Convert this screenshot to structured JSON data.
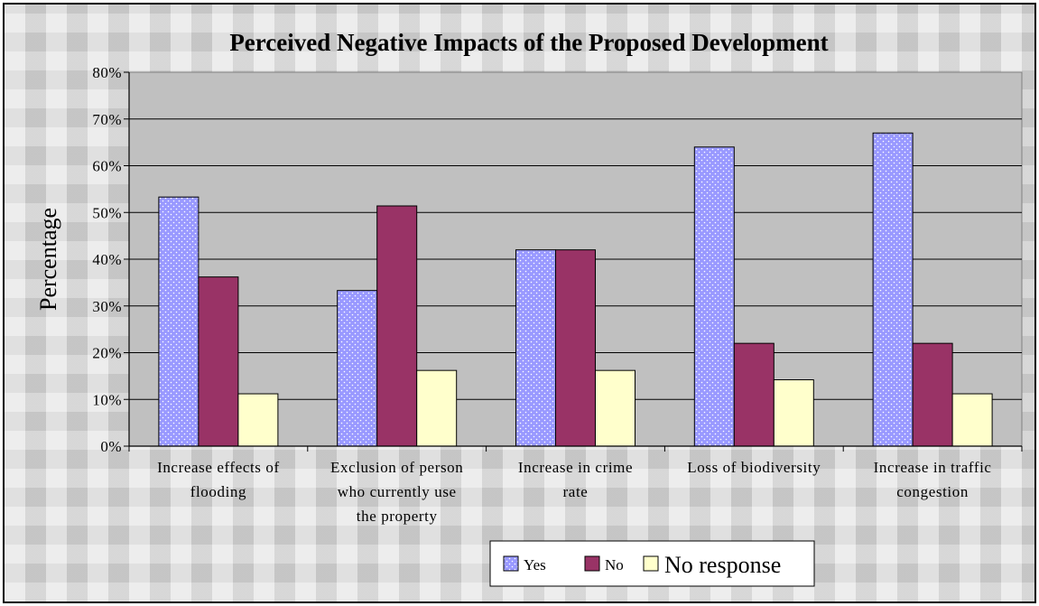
{
  "chart_data": {
    "type": "bar",
    "title": "Perceived Negative Impacts of the Proposed Development",
    "ylabel": "Percentage",
    "xlabel": "",
    "ylim": [
      0,
      80
    ],
    "yticks": [
      "0%",
      "10%",
      "20%",
      "30%",
      "40%",
      "50%",
      "60%",
      "70%",
      "80%"
    ],
    "grid": true,
    "legend_position": "bottom",
    "categories": [
      [
        "Increase effects of",
        "flooding"
      ],
      [
        "Exclusion of person",
        "who currently use",
        "the property"
      ],
      [
        "Increase in crime",
        "rate"
      ],
      [
        "Loss of biodiversity"
      ],
      [
        "Increase in traffic",
        "congestion"
      ]
    ],
    "series": [
      {
        "name": "Yes",
        "values": [
          53.3,
          33.3,
          42.0,
          64.0,
          67.0
        ],
        "color": "#9999ff",
        "pattern": "dotted"
      },
      {
        "name": "No",
        "values": [
          36.2,
          51.4,
          42.0,
          22.0,
          22.0
        ],
        "color": "#993366",
        "pattern": "solid"
      },
      {
        "name": "No response",
        "values": [
          11.2,
          16.2,
          16.2,
          14.2,
          11.2
        ],
        "color": "#ffffcc",
        "pattern": "solid"
      }
    ],
    "plot_background": "#c0c0c0"
  }
}
